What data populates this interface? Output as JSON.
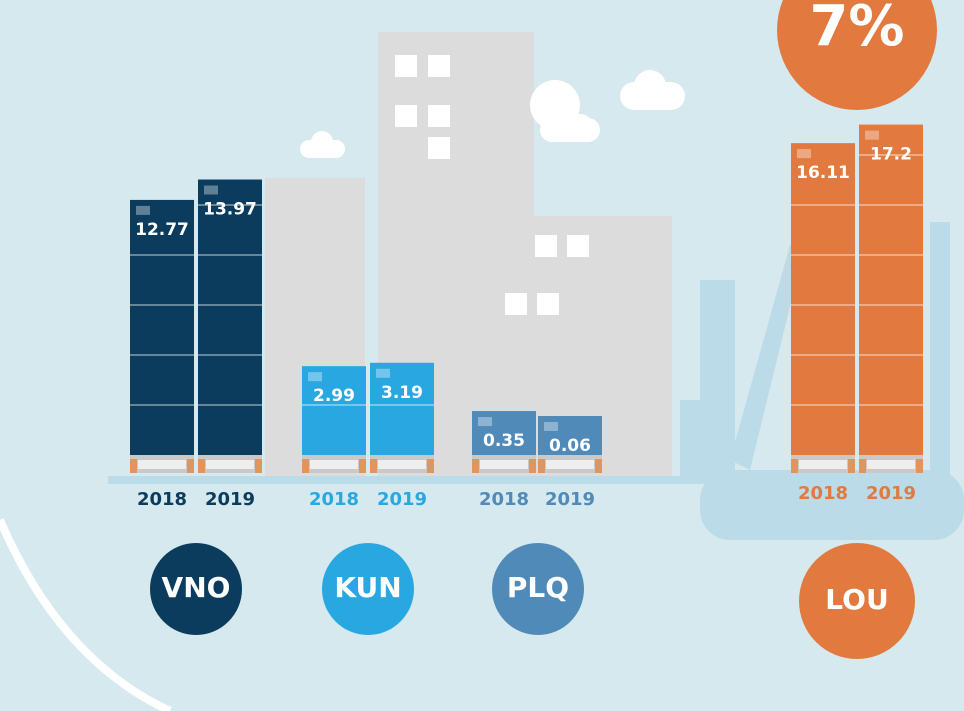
{
  "badge": "7%",
  "chart_data": [
    {
      "type": "bar",
      "title": "VNO",
      "categories": [
        "2018",
        "2019"
      ],
      "values": [
        12.77,
        13.97
      ],
      "color": "#0b3c5d"
    },
    {
      "type": "bar",
      "title": "KUN",
      "categories": [
        "2018",
        "2019"
      ],
      "values": [
        2.99,
        3.19
      ],
      "color": "#29a7e1"
    },
    {
      "type": "bar",
      "title": "PLQ",
      "categories": [
        "2018",
        "2019"
      ],
      "values": [
        0.35,
        0.06
      ],
      "color": "#4f8ab8"
    },
    {
      "type": "bar",
      "title": "LOU",
      "categories": [
        "2018",
        "2019"
      ],
      "values": [
        16.11,
        17.2
      ],
      "color": "#e27a40"
    }
  ]
}
